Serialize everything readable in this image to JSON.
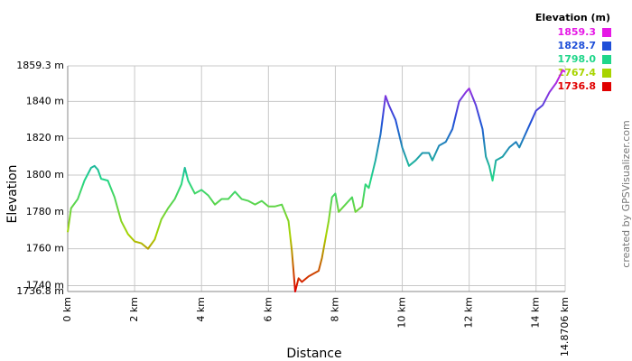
{
  "chart_data": {
    "type": "line",
    "x_label": "Distance",
    "y_label": "Elevation",
    "credit": "created by GPSVisualizer.com",
    "x": [
      0,
      0.1,
      0.3,
      0.5,
      0.7,
      0.8,
      0.9,
      1.0,
      1.2,
      1.4,
      1.6,
      1.8,
      2.0,
      2.2,
      2.4,
      2.6,
      2.8,
      3.0,
      3.2,
      3.4,
      3.5,
      3.6,
      3.8,
      4.0,
      4.2,
      4.4,
      4.6,
      4.8,
      5.0,
      5.2,
      5.4,
      5.6,
      5.8,
      6.0,
      6.2,
      6.4,
      6.6,
      6.7,
      6.75,
      6.8,
      6.9,
      7.0,
      7.2,
      7.4,
      7.5,
      7.6,
      7.8,
      7.9,
      8.0,
      8.1,
      8.3,
      8.5,
      8.6,
      8.8,
      8.9,
      9.0,
      9.2,
      9.35,
      9.5,
      9.6,
      9.8,
      10.0,
      10.2,
      10.4,
      10.6,
      10.8,
      10.9,
      11.1,
      11.3,
      11.5,
      11.7,
      11.9,
      12.0,
      12.2,
      12.4,
      12.5,
      12.6,
      12.7,
      12.8,
      13.0,
      13.2,
      13.4,
      13.5,
      13.7,
      14.0,
      14.2,
      14.4,
      14.6,
      14.8,
      14.8706
    ],
    "values": [
      1769,
      1782,
      1787,
      1797,
      1804,
      1805,
      1803,
      1798,
      1797,
      1788,
      1775,
      1768,
      1764,
      1763,
      1760,
      1765,
      1776,
      1782,
      1787,
      1795,
      1804,
      1797,
      1790,
      1792,
      1789,
      1784,
      1787,
      1787,
      1791,
      1787,
      1786,
      1784,
      1786,
      1783,
      1783,
      1784,
      1775,
      1759,
      1748,
      1736.8,
      1744,
      1742,
      1745,
      1747,
      1748,
      1755,
      1775,
      1788,
      1790,
      1780,
      1784,
      1788,
      1780,
      1783,
      1795,
      1793,
      1808,
      1822,
      1843,
      1838,
      1830,
      1815,
      1805,
      1808,
      1812,
      1812,
      1808,
      1816,
      1818,
      1825,
      1840,
      1845,
      1847,
      1838,
      1825,
      1810,
      1805,
      1797,
      1808,
      1810,
      1815,
      1818,
      1815,
      1823,
      1835,
      1838,
      1845,
      1850,
      1857,
      1856
    ],
    "xlim": [
      0,
      14.8706
    ],
    "ylim": [
      1736.8,
      1859.3
    ],
    "xticks": [
      {
        "value": 0,
        "label": "0 km"
      },
      {
        "value": 2,
        "label": "2 km"
      },
      {
        "value": 4,
        "label": "4 km"
      },
      {
        "value": 6,
        "label": "6 km"
      },
      {
        "value": 8,
        "label": "8 km"
      },
      {
        "value": 10,
        "label": "10 km"
      },
      {
        "value": 12,
        "label": "12 km"
      },
      {
        "value": 14,
        "label": "14 km"
      },
      {
        "value": 14.8706,
        "label": "14.8706 km"
      }
    ],
    "yticks": [
      {
        "value": 1736.8,
        "label": "1736.8 m"
      },
      {
        "value": 1740,
        "label": "1740 m"
      },
      {
        "value": 1760,
        "label": "1760 m"
      },
      {
        "value": 1780,
        "label": "1780 m"
      },
      {
        "value": 1800,
        "label": "1800 m"
      },
      {
        "value": 1820,
        "label": "1820 m"
      },
      {
        "value": 1840,
        "label": "1840 m"
      },
      {
        "value": 1859.3,
        "label": "1859.3 m"
      }
    ],
    "grid": true,
    "legend": {
      "title": "Elevation (m)",
      "entries": [
        {
          "value": 1859.3,
          "label": "1859.3",
          "color": "#e619e6"
        },
        {
          "value": 1828.7,
          "label": "1828.7",
          "color": "#1f4fd8"
        },
        {
          "value": 1798.0,
          "label": "1798.0",
          "color": "#1fd68a"
        },
        {
          "value": 1767.4,
          "label": "1767.4",
          "color": "#a8d400"
        },
        {
          "value": 1736.8,
          "label": "1736.8",
          "color": "#e00000"
        }
      ]
    }
  }
}
